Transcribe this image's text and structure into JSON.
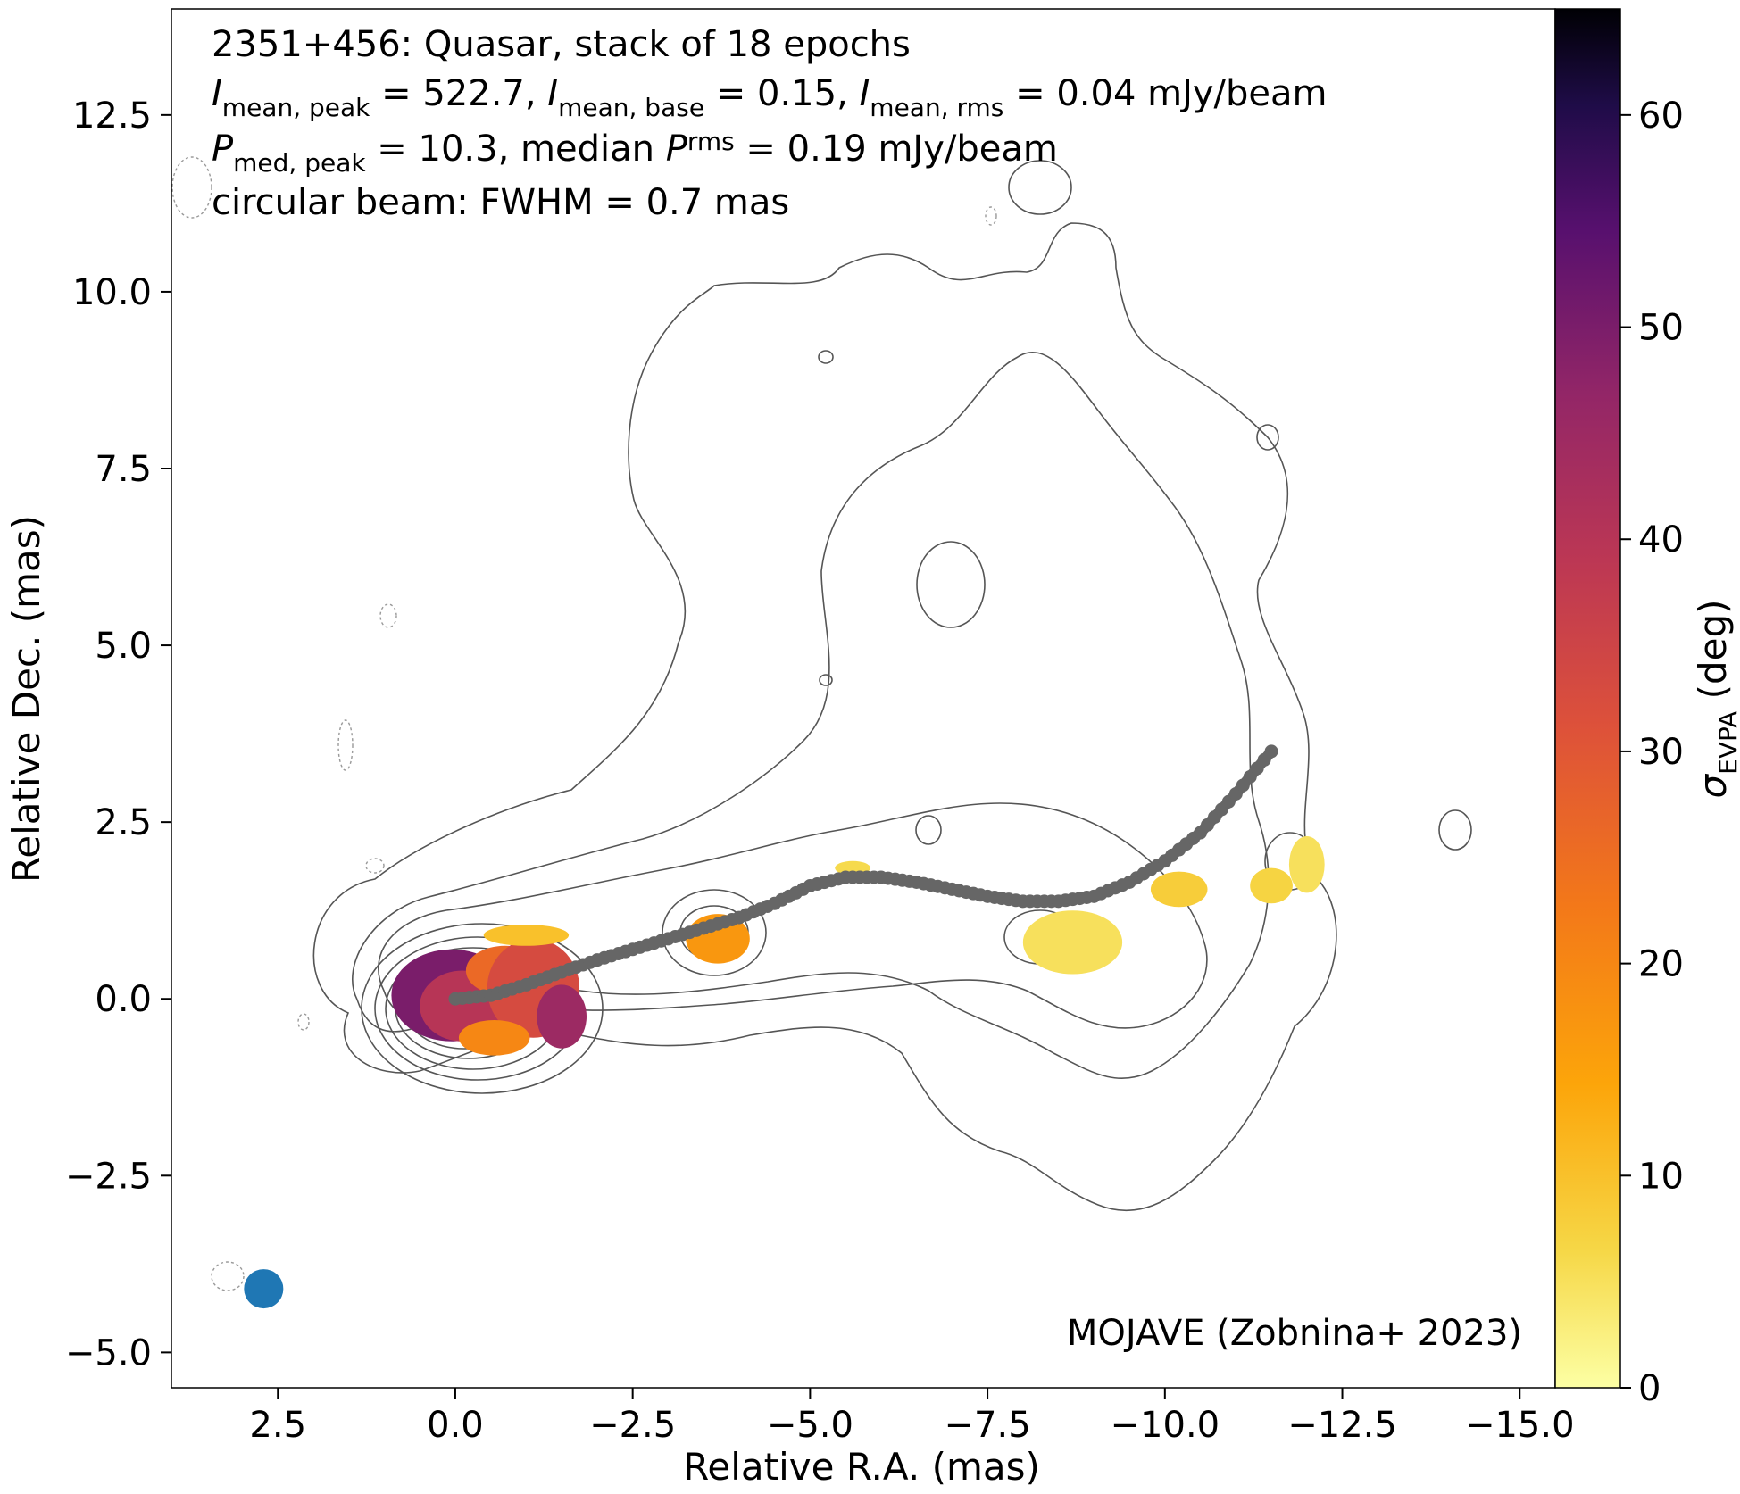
{
  "chart_data": {
    "type": "heatmap",
    "source_name": "2351+456",
    "source_class": "Quasar",
    "stack_note": "stack of 18 epochs",
    "info": {
      "line1": "2351+456: Quasar, stack of 18 epochs",
      "i_peak_value": "522.7",
      "i_base_value": "0.15",
      "i_rms_value": "0.04",
      "p_peak_value": "10.3",
      "p_rms_value": "0.19",
      "unit": "mJy/beam",
      "beam_line": "circular beam: FWHM = 0.7 mas",
      "sym_I": "I",
      "sym_P": "P",
      "sub_mean_peak": "mean, peak",
      "sub_mean_base": "mean, base",
      "sub_mean_rms": "mean, rms",
      "sub_med_peak": "med, peak",
      "sub_rms": "rms",
      "median_word": "median"
    },
    "credit": "MOJAVE (Zobnina+ 2023)",
    "xlabel": "Relative R.A. (mas)",
    "ylabel": "Relative Dec. (mas)",
    "xlim": [
      4.0,
      -15.5
    ],
    "ylim": [
      -5.5,
      14.0
    ],
    "xticks": [
      2.5,
      0.0,
      -2.5,
      -5.0,
      -7.5,
      -10.0,
      -12.5,
      -15.0
    ],
    "xtick_labels": [
      "2.5",
      "0.0",
      "−2.5",
      "−5.0",
      "−7.5",
      "−10.0",
      "−12.5",
      "−15.0"
    ],
    "yticks": [
      -5.0,
      -2.5,
      0.0,
      2.5,
      5.0,
      7.5,
      10.0,
      12.5
    ],
    "ytick_labels": [
      "−5.0",
      "−2.5",
      "0.0",
      "2.5",
      "5.0",
      "7.5",
      "10.0",
      "12.5"
    ],
    "colorbar": {
      "label_symbol": "σ",
      "label_sub": "EVPA",
      "label_unit": "(deg)",
      "range": [
        0,
        65
      ],
      "ticks": [
        0,
        10,
        20,
        30,
        40,
        50,
        60
      ],
      "tick_labels": [
        "0",
        "10",
        "20",
        "30",
        "40",
        "50",
        "60"
      ],
      "colormap": "inferno_r"
    },
    "beam": {
      "x": 2.7,
      "y": -4.1,
      "fwhm_mas": 0.7,
      "color": "#1f77b4"
    },
    "ridgeline": {
      "color": "#666666",
      "x": [
        0.0,
        -0.5,
        -1.0,
        -1.5,
        -2.0,
        -2.5,
        -3.0,
        -3.5,
        -4.0,
        -4.5,
        -5.0,
        -5.5,
        -6.0,
        -6.5,
        -7.0,
        -7.5,
        -8.0,
        -8.5,
        -9.0,
        -9.5,
        -10.0,
        -10.5,
        -11.0,
        -11.5
      ],
      "y": [
        0.0,
        0.05,
        0.2,
        0.38,
        0.55,
        0.7,
        0.85,
        1.0,
        1.15,
        1.35,
        1.6,
        1.72,
        1.72,
        1.65,
        1.55,
        1.45,
        1.38,
        1.38,
        1.45,
        1.65,
        1.95,
        2.35,
        2.9,
        3.5
      ]
    },
    "regions": [
      {
        "x": 0.05,
        "y": 0.05,
        "rx": 0.85,
        "ry": 0.65,
        "value": 50
      },
      {
        "x": -0.1,
        "y": -0.1,
        "rx": 0.6,
        "ry": 0.5,
        "value": 40
      },
      {
        "x": -0.7,
        "y": 0.4,
        "rx": 0.55,
        "ry": 0.35,
        "value": 26
      },
      {
        "x": -1.1,
        "y": 0.15,
        "rx": 0.65,
        "ry": 0.7,
        "value": 33
      },
      {
        "x": -1.5,
        "y": -0.25,
        "rx": 0.35,
        "ry": 0.45,
        "value": 45
      },
      {
        "x": -0.55,
        "y": -0.55,
        "rx": 0.5,
        "ry": 0.25,
        "value": 20
      },
      {
        "x": -1.0,
        "y": 0.9,
        "rx": 0.6,
        "ry": 0.15,
        "value": 10
      },
      {
        "x": -3.7,
        "y": 0.85,
        "rx": 0.45,
        "ry": 0.35,
        "value": 17
      },
      {
        "x": -5.6,
        "y": 1.85,
        "rx": 0.25,
        "ry": 0.1,
        "value": 6
      },
      {
        "x": -8.7,
        "y": 0.8,
        "rx": 0.7,
        "ry": 0.45,
        "value": 5
      },
      {
        "x": -10.2,
        "y": 1.55,
        "rx": 0.4,
        "ry": 0.25,
        "value": 8
      },
      {
        "x": -11.5,
        "y": 1.6,
        "rx": 0.3,
        "ry": 0.25,
        "value": 7
      },
      {
        "x": -12.0,
        "y": 1.9,
        "rx": 0.25,
        "ry": 0.4,
        "value": 5
      }
    ]
  }
}
